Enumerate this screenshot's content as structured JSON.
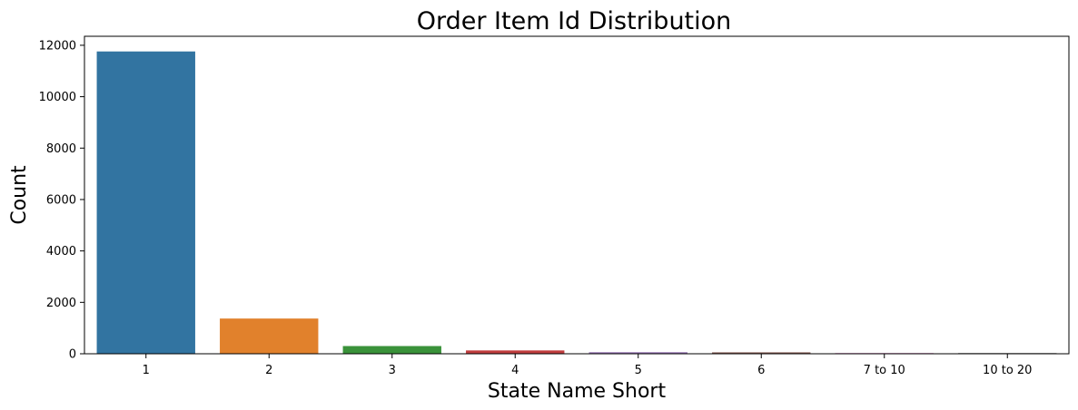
{
  "chart_data": {
    "type": "bar",
    "title": "Order Item Id Distribution",
    "xlabel": "State Name Short",
    "ylabel": "Count",
    "categories": [
      "1",
      "2",
      "3",
      "4",
      "5",
      "6",
      "7 to 10",
      "10 to 20"
    ],
    "values": [
      11760,
      1370,
      300,
      130,
      60,
      55,
      20,
      25
    ],
    "colors": [
      "#3274a1",
      "#e1812c",
      "#3a923a",
      "#c03d3e",
      "#9372b2",
      "#845b53",
      "#d684bd",
      "#7f7f7f"
    ],
    "ylim": [
      0,
      12350
    ],
    "yticks": [
      0,
      2000,
      4000,
      6000,
      8000,
      10000,
      12000
    ],
    "ytick_labels": [
      "0",
      "2000",
      "4000",
      "6000",
      "8000",
      "10000",
      "12000"
    ],
    "grid": false,
    "legend": "none"
  }
}
